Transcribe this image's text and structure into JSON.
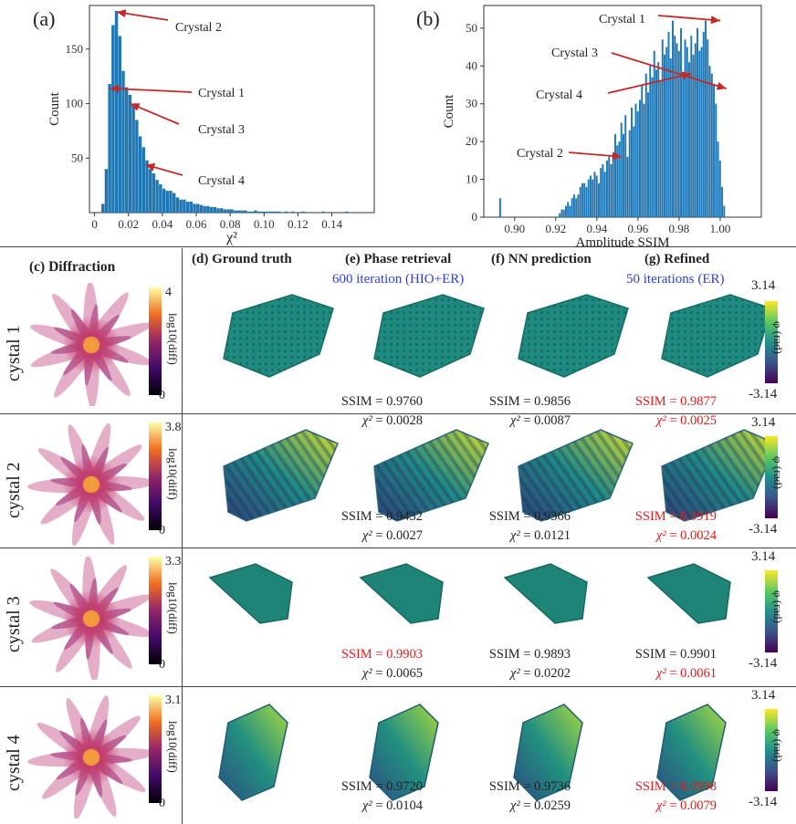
{
  "hist_chi2": {
    "panel_label": "(a)",
    "xlabel": "χ²",
    "ylabel": "Count",
    "annotations": [
      "Crystal 2",
      "Crystal 1",
      "Crystal 3",
      "Crystal 4"
    ],
    "accent_color": "#1f77b4",
    "arrow_color": "#c62828"
  },
  "hist_ssim": {
    "panel_label": "(b)",
    "xlabel": "Amplitude SSIM",
    "ylabel": "Count",
    "annotations": [
      "Crystal 1",
      "Crystal 3",
      "Crystal 4",
      "Crystal 2"
    ]
  },
  "chart_data": [
    {
      "type": "bar",
      "xlabel": "χ²",
      "ylabel": "Count",
      "xlim": [
        -0.003,
        0.165
      ],
      "ylim": [
        0,
        190
      ],
      "xticks": [
        "0",
        "0.02",
        "0.04",
        "0.06",
        "0.08",
        "0.10",
        "0.12",
        "0.14"
      ],
      "yticks": [
        "50",
        "100",
        "150"
      ],
      "bin_width": 0.002,
      "x_start": 0.004,
      "values": [
        8,
        40,
        118,
        172,
        185,
        162,
        130,
        115,
        108,
        100,
        85,
        70,
        60,
        48,
        40,
        36,
        30,
        26,
        22,
        20,
        20,
        18,
        14,
        12,
        12,
        10,
        10,
        8,
        8,
        7,
        6,
        6,
        5,
        5,
        4,
        4,
        3,
        3,
        3,
        2,
        2,
        2,
        2,
        1,
        1,
        2,
        1,
        1,
        1,
        1,
        1,
        1,
        1,
        0,
        1,
        0,
        1,
        0,
        0,
        1,
        0,
        0,
        0,
        0,
        0,
        1,
        0,
        0,
        0,
        0,
        0,
        0,
        1,
        0,
        0,
        0,
        0,
        0
      ],
      "annotations": [
        {
          "text": "Crystal 2",
          "x": 0.013,
          "y": 184
        },
        {
          "text": "Crystal 1",
          "x": 0.009,
          "y": 114
        },
        {
          "text": "Crystal 3",
          "x": 0.021,
          "y": 100
        },
        {
          "text": "Crystal 4",
          "x": 0.03,
          "y": 44
        }
      ]
    },
    {
      "type": "bar",
      "xlabel": "Amplitude SSIM",
      "ylabel": "Count",
      "xlim": [
        0.885,
        1.02
      ],
      "ylim": [
        0,
        56
      ],
      "xticks": [
        "0.90",
        "0.92",
        "0.94",
        "0.96",
        "0.98",
        "1.00"
      ],
      "yticks": [
        "0",
        "10",
        "20",
        "30",
        "40",
        "50"
      ],
      "bin_width": 0.001,
      "x_start": 0.8925,
      "values": [
        5,
        0,
        0,
        0,
        0,
        0,
        0,
        0,
        0,
        0,
        0,
        0,
        0,
        0,
        0,
        0,
        0,
        0,
        0,
        0,
        0,
        0,
        0,
        0,
        0,
        0,
        0,
        0,
        0,
        1,
        2,
        2,
        3,
        4,
        3,
        5,
        6,
        5,
        6,
        8,
        9,
        9,
        8,
        10,
        11,
        10,
        12,
        11,
        9,
        13,
        14,
        12,
        15,
        16,
        14,
        17,
        22,
        19,
        20,
        25,
        22,
        27,
        16,
        23,
        29,
        24,
        30,
        28,
        31,
        35,
        30,
        38,
        33,
        40,
        37,
        44,
        39,
        41,
        36,
        47,
        43,
        45,
        49,
        42,
        52,
        48,
        46,
        44,
        50,
        38,
        47,
        45,
        41,
        48,
        43,
        46,
        50,
        44,
        45,
        49,
        52,
        47,
        40,
        38,
        35,
        30,
        20,
        15,
        8,
        3
      ],
      "annotations": [
        {
          "text": "Crystal 1",
          "x": 1.0,
          "y": 52
        },
        {
          "text": "Crystal 3",
          "x": 1.003,
          "y": 34
        },
        {
          "text": "Crystal 4",
          "x": 0.986,
          "y": 38
        },
        {
          "text": "Crystal 2",
          "x": 0.952,
          "y": 16
        }
      ]
    }
  ],
  "grid": {
    "headers": {
      "c": "(c) Diffraction",
      "d": "(d) Ground truth",
      "e": "(e) Phase retrieval",
      "e_sub": "600 iteration (HIO+ER)",
      "f": "(f) NN prediction",
      "g": "(g) Refined",
      "g_sub": "50 iterations (ER)"
    },
    "diff_cbar_label": "log10(diff)",
    "phase_cbar_label": "φ (rad)",
    "phase_max": "3.14",
    "phase_min": "-3.14",
    "diff_min": "0",
    "ssim_prefix": "SSIM",
    "chi_prefix": "χ²",
    "rows": [
      {
        "label": "cystal 1",
        "diff_max": "4",
        "e_ssim": "= 0.9760",
        "e_chi": "= 0.0028",
        "f_ssim": "= 0.9856",
        "f_chi": "= 0.0087",
        "g_ssim": "= 0.9877",
        "g_chi": "= 0.0025"
      },
      {
        "label": "cystal 2",
        "diff_max": "3.8",
        "e_ssim": "= 0.9432",
        "e_chi": "= 0.0027",
        "f_ssim": "= 0.9366",
        "f_chi": "= 0.0121",
        "g_ssim": "= 0.9919",
        "g_chi": "= 0.0024"
      },
      {
        "label": "cystal 3",
        "diff_max": "3.3",
        "e_ssim": "= 0.9903",
        "e_chi": "= 0.0065",
        "f_ssim": "= 0.9893",
        "f_chi": "= 0.0202",
        "g_ssim": "= 0.9901",
        "g_chi": "= 0.0061"
      },
      {
        "label": "cystal 4",
        "diff_max": "3.1",
        "e_ssim": "= 0.9720",
        "e_chi": "= 0.0104",
        "f_ssim": "= 0.9736",
        "f_chi": "= 0.0259",
        "g_ssim": "= 0.9998",
        "g_chi": "= 0.0079"
      }
    ],
    "red_metric_color": "#e21b1b",
    "blue_sub_color": "#2b3ed8"
  }
}
